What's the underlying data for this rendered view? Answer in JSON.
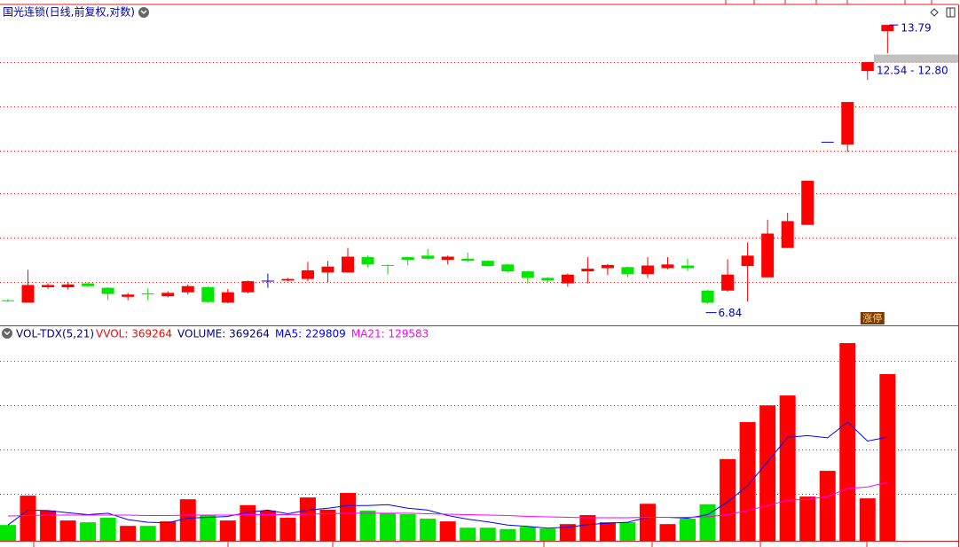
{
  "chart_data": [
    {
      "type": "candlestick",
      "title": "国光连锁(日线,前复权,对数)",
      "open": [
        6.9,
        6.86,
        7.13,
        7.13,
        7.2,
        7.12,
        6.96,
        7.02,
        6.97,
        7.04,
        7.13,
        6.86,
        7.04,
        7.25,
        7.25,
        7.28,
        7.4,
        7.4,
        7.69,
        7.54,
        7.69,
        7.72,
        7.64,
        7.66,
        7.62,
        7.55,
        7.42,
        7.3,
        7.2,
        7.42,
        7.48,
        7.5,
        7.37,
        7.48,
        7.53,
        7.07,
        7.07,
        7.52,
        7.31,
        7.87,
        8.34,
        10.28,
        10.21,
        12.28,
        13.58
      ],
      "close": [
        6.89,
        7.17,
        7.17,
        7.18,
        7.15,
        7.01,
        7.0,
        7.01,
        7.03,
        7.15,
        6.87,
        7.04,
        7.24,
        7.25,
        7.28,
        7.44,
        7.51,
        7.7,
        7.55,
        7.53,
        7.64,
        7.66,
        7.7,
        7.62,
        7.52,
        7.42,
        7.3,
        7.25,
        7.36,
        7.47,
        7.54,
        7.37,
        7.53,
        7.55,
        7.48,
        6.86,
        7.36,
        7.72,
        8.16,
        8.42,
        9.32,
        10.28,
        11.36,
        12.56,
        13.79
      ],
      "high": [
        6.92,
        7.45,
        7.2,
        7.22,
        7.22,
        7.13,
        7.03,
        7.11,
        7.06,
        7.18,
        7.15,
        7.1,
        7.25,
        7.38,
        7.3,
        7.6,
        7.62,
        7.87,
        7.72,
        7.55,
        7.7,
        7.85,
        7.72,
        7.78,
        7.63,
        7.56,
        7.43,
        7.31,
        7.38,
        7.69,
        7.56,
        7.51,
        7.69,
        7.69,
        7.66,
        7.08,
        7.65,
        7.98,
        8.45,
        8.6,
        9.32,
        10.28,
        11.36,
        12.56,
        13.79
      ],
      "low": [
        6.87,
        6.86,
        7.1,
        7.09,
        7.13,
        6.9,
        6.9,
        6.9,
        6.95,
        7.0,
        6.86,
        6.85,
        7.02,
        7.12,
        7.24,
        7.24,
        7.22,
        7.4,
        7.5,
        7.36,
        7.53,
        7.63,
        7.55,
        7.6,
        7.51,
        7.4,
        7.19,
        7.22,
        7.14,
        7.2,
        7.35,
        7.31,
        7.3,
        7.46,
        7.43,
        6.84,
        7.05,
        6.88,
        7.31,
        7.87,
        8.34,
        10.28,
        10.02,
        12.01,
        12.84
      ],
      "ylim": [
        6.58,
        14.2
      ],
      "log_scale": true,
      "up_color": "#ff0000",
      "down_color": "#00e600",
      "flat_color": "#0000ff",
      "gap": {
        "label": "12.54 - 12.80",
        "low": 12.54,
        "high": 12.8
      },
      "badge": "涨停"
    },
    {
      "type": "volume",
      "title": "VOL-TDX(5,21)",
      "readouts": [
        {
          "label": "VVOL: 369264",
          "color": "#ff0000"
        },
        {
          "label": "VOLUME: 369264",
          "color": "#000080"
        },
        {
          "label": "MA5: 229809",
          "color": "#0000ff"
        },
        {
          "label": "MA21: 129583",
          "color": "#ff00ff"
        }
      ],
      "values": [
        35000,
        100000,
        67000,
        45000,
        41000,
        51000,
        33000,
        33000,
        43000,
        92000,
        57000,
        45000,
        79000,
        67000,
        51000,
        96000,
        69000,
        106000,
        67000,
        61000,
        59000,
        49000,
        43000,
        29000,
        29000,
        26000,
        31000,
        27000,
        37000,
        57000,
        41000,
        41000,
        82000,
        37000,
        49000,
        81000,
        181000,
        263000,
        300000,
        322000,
        98000,
        155000,
        438000,
        94000,
        369264
      ],
      "ma5": [
        35000,
        68000,
        67000,
        62000,
        58000,
        61000,
        47000,
        41000,
        40000,
        50000,
        52000,
        54000,
        63000,
        68000,
        60000,
        68000,
        72000,
        78000,
        78000,
        80000,
        72000,
        68000,
        56000,
        48000,
        42000,
        35000,
        32000,
        28000,
        30000,
        36000,
        39000,
        41000,
        52000,
        52000,
        50000,
        58000,
        86000,
        122000,
        175000,
        229000,
        233000,
        228000,
        263000,
        221000,
        229809
      ],
      "ma21": [
        55000,
        56000,
        57000,
        57000,
        57000,
        57000,
        57000,
        56000,
        56000,
        57000,
        57000,
        57000,
        58000,
        58000,
        58000,
        59000,
        60000,
        61000,
        61000,
        61000,
        61000,
        60000,
        59000,
        58000,
        57000,
        56000,
        54000,
        53000,
        52000,
        51000,
        51000,
        51000,
        52000,
        52000,
        52000,
        53000,
        58000,
        67000,
        78000,
        90000,
        92000,
        98000,
        116000,
        119000,
        129583
      ],
      "ma5_color": "#0000ff",
      "ma21_color": "#ff00ff",
      "ylim": [
        0,
        440000
      ]
    }
  ]
}
